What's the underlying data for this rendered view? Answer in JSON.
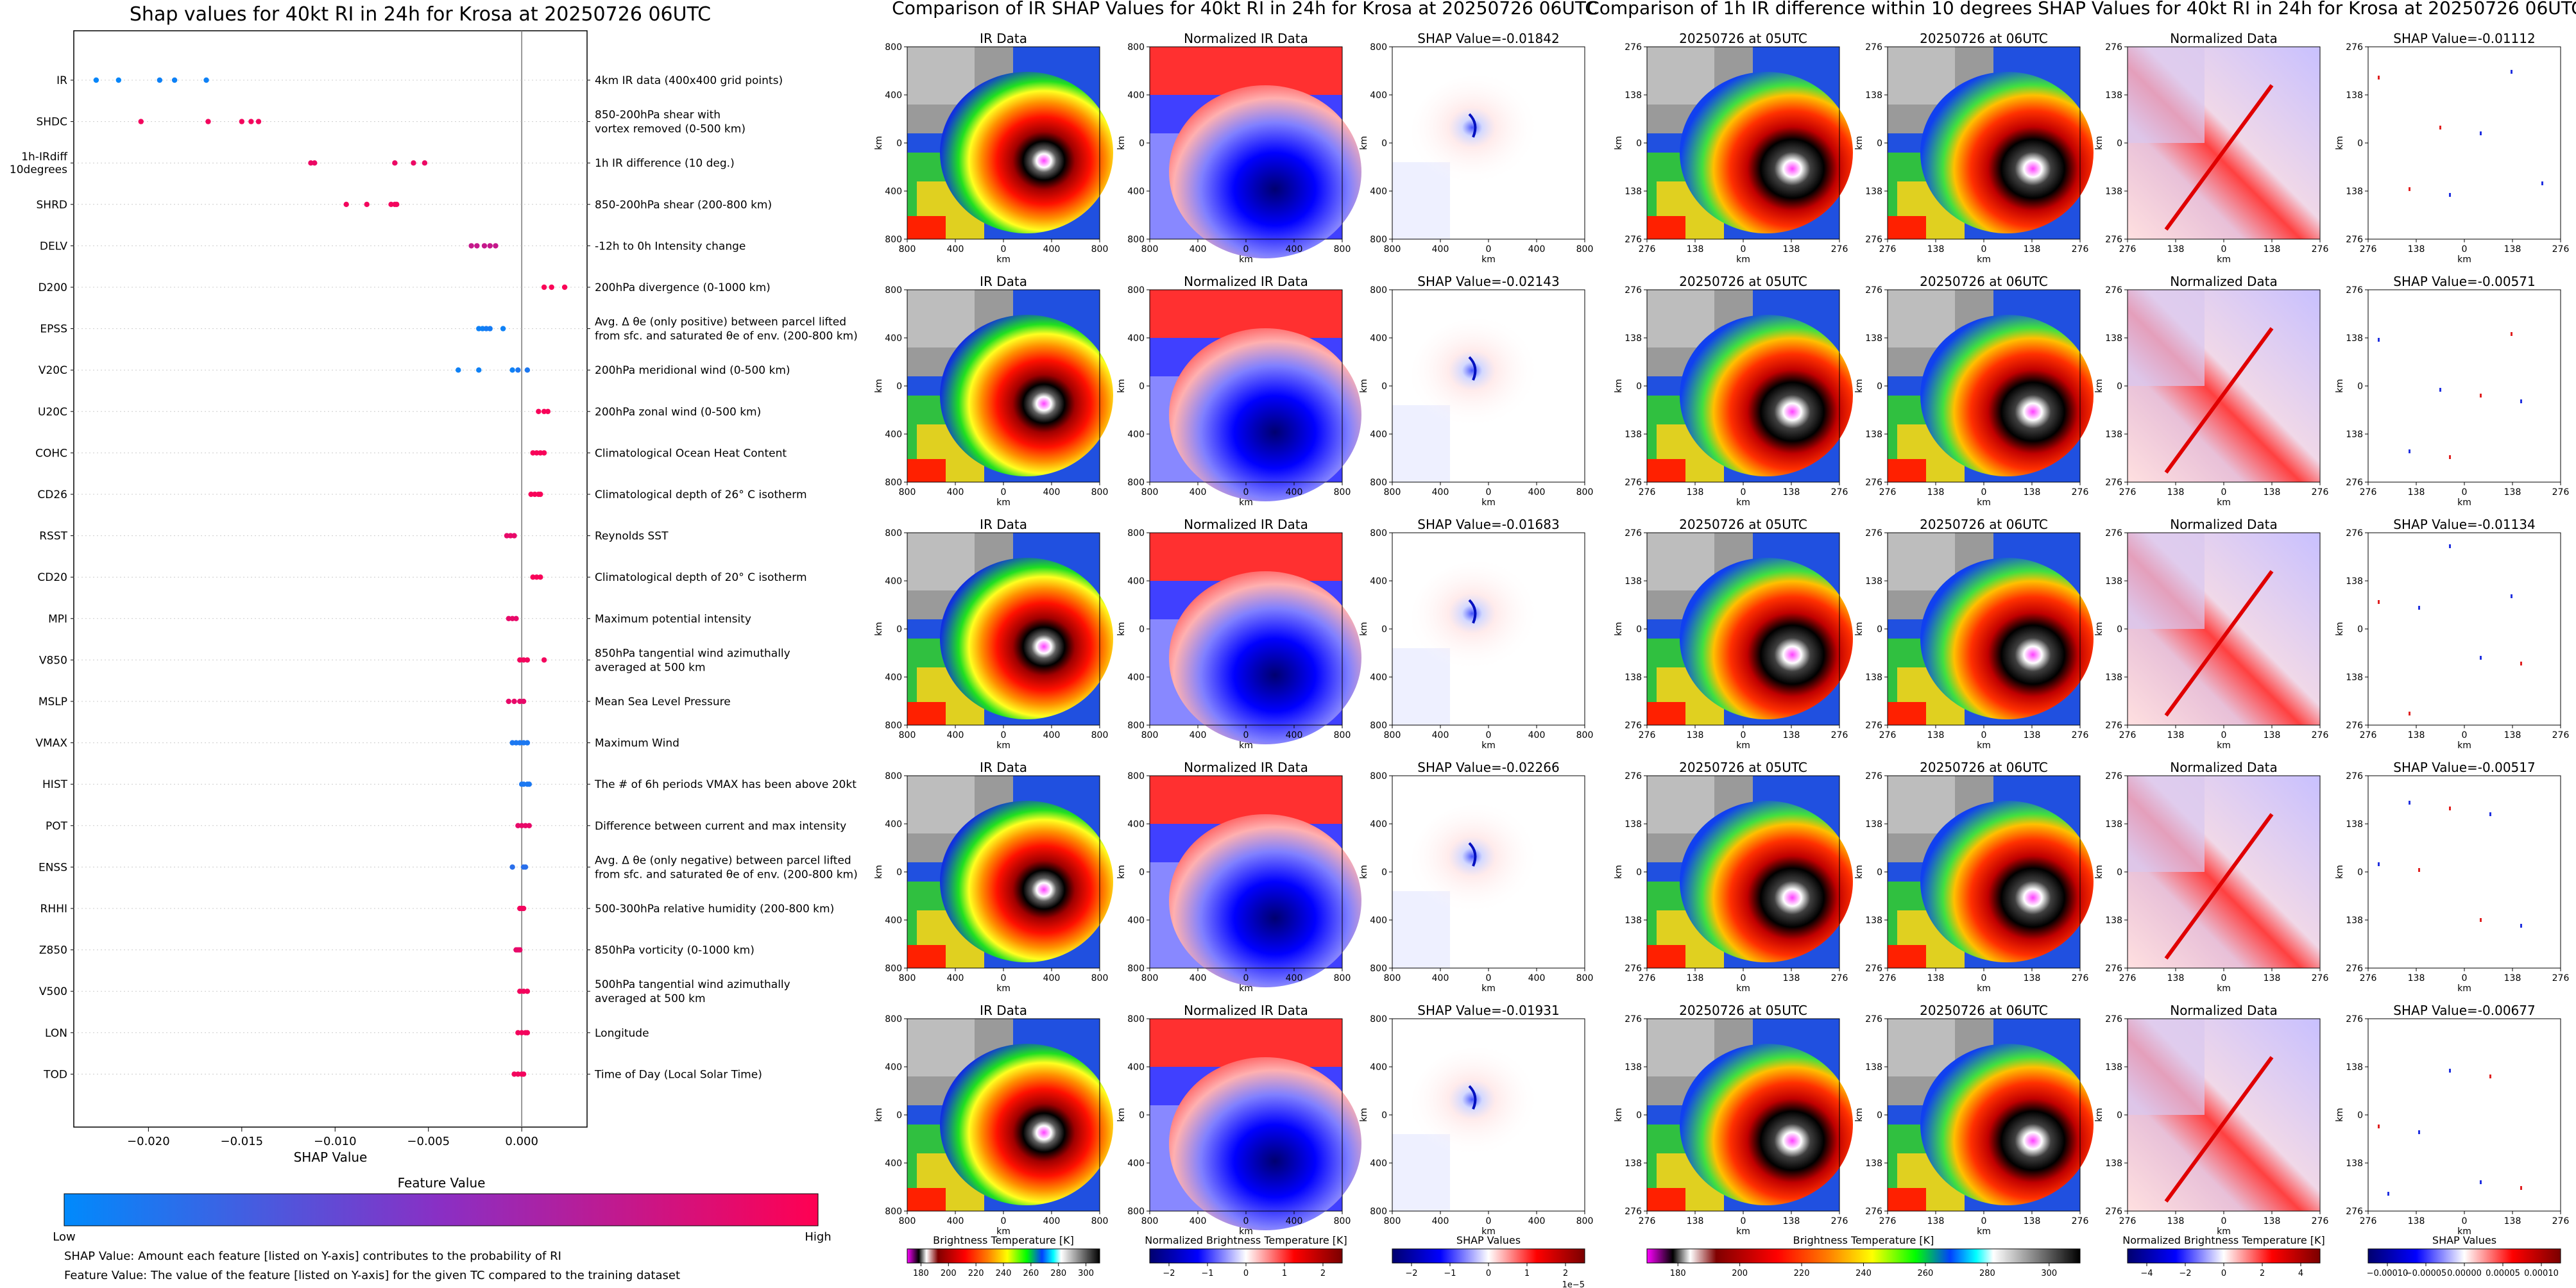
{
  "colors": {
    "feature_low": "#008afc",
    "feature_high": "#ff0052",
    "ir_palette": [
      "#ff00ff",
      "#000000",
      "#ffffff",
      "#c00000",
      "#ff0000",
      "#ff8000",
      "#ffff00",
      "#00ff00",
      "#0040ff",
      "#00ffff",
      "#ffffff",
      "#000000"
    ],
    "diverging": [
      "#00008b",
      "#0000ff",
      "#ffffff",
      "#ff0000",
      "#8b0000"
    ]
  },
  "left_panel": {
    "title": "Shap values for 40kt RI in 24h for Krosa at 20250726 06UTC",
    "xlabel": "SHAP Value",
    "colorbar_title": "Feature Value",
    "colorbar_low": "Low",
    "colorbar_high": "High",
    "footnote_1": "SHAP Value: Amount each feature [listed on Y-axis] contributes to the probability of RI",
    "footnote_2": "Feature Value: The value of the feature [listed on Y-axis] for the given TC compared to the training dataset"
  },
  "middle_panel": {
    "title": "Comparison of IR SHAP Values for 40kt RI in 24h for Krosa at 20250726 06UTC",
    "col_titles": [
      "IR Data",
      "Normalized IR Data"
    ],
    "shap_titles": [
      "SHAP Value=-0.01842",
      "SHAP Value=-0.02143",
      "SHAP Value=-0.01683",
      "SHAP Value=-0.02266",
      "SHAP Value=-0.01931"
    ],
    "ticks": [
      "800",
      "400",
      "0",
      "400",
      "800"
    ],
    "axis_unit": "km",
    "colorbars": [
      {
        "label": "Brightness Temperature [K]",
        "ticks": [
          "180",
          "200",
          "220",
          "240",
          "260",
          "280",
          "300"
        ]
      },
      {
        "label": "Normalized Brightness Temperature [K]",
        "ticks": [
          "−2",
          "−1",
          "0",
          "1",
          "2"
        ]
      },
      {
        "label": "SHAP Values",
        "ticks": [
          "−2",
          "−1",
          "0",
          "1",
          "2"
        ],
        "offset": "1e−5"
      }
    ]
  },
  "right_panel": {
    "title": "Comparison of 1h IR difference within 10 degrees SHAP Values for 40kt RI in 24h for Krosa at 20250726 06UTC",
    "col_titles": [
      "20250726 at 05UTC",
      "20250726 at 06UTC",
      "Normalized Data"
    ],
    "shap_titles": [
      "SHAP Value=-0.01112",
      "SHAP Value=-0.00571",
      "SHAP Value=-0.01134",
      "SHAP Value=-0.00517",
      "SHAP Value=-0.00677"
    ],
    "ticks": [
      "276",
      "138",
      "0",
      "138",
      "276"
    ],
    "axis_unit": "km",
    "colorbars": [
      {
        "label": "Brightness Temperature [K]",
        "ticks": [
          "180",
          "200",
          "220",
          "240",
          "260",
          "280",
          "300"
        ]
      },
      {
        "label": "Normalized Brightness Temperature [K]",
        "ticks": [
          "−4",
          "−2",
          "0",
          "2",
          "4"
        ]
      },
      {
        "label": "SHAP Values",
        "ticks": [
          "−0.00010",
          "−0.00005",
          "0.00000",
          "0.00005",
          "0.00010"
        ]
      }
    ]
  },
  "chart_data": [
    {
      "type": "scatter",
      "title": "Shap values for 40kt RI in 24h for Krosa at 20250726 06UTC",
      "xlabel": "SHAP Value",
      "xlim": [
        -0.024,
        0.0035
      ],
      "xticks": [
        "−0.020",
        "−0.015",
        "−0.010",
        "−0.005",
        "0.000"
      ],
      "xtick_values": [
        -0.02,
        -0.015,
        -0.01,
        -0.005,
        0.0
      ],
      "legend": "colorbar-bottom",
      "features": [
        {
          "name": "IR",
          "desc": "4km IR data (400x400 grid points)",
          "points": [
            [
              -0.0228,
              0.02
            ],
            [
              -0.0216,
              0.02
            ],
            [
              -0.0194,
              0.05
            ],
            [
              -0.0186,
              0.05
            ],
            [
              -0.0169,
              0.05
            ]
          ]
        },
        {
          "name": "SHDC",
          "desc": "850-200hPa shear with\nvortex removed (0-500 km)",
          "points": [
            [
              -0.0204,
              0.95
            ],
            [
              -0.0168,
              0.95
            ],
            [
              -0.015,
              0.95
            ],
            [
              -0.0145,
              0.95
            ],
            [
              -0.0141,
              0.95
            ]
          ]
        },
        {
          "name": "1h-IRdiff\n10degrees",
          "desc": "1h IR difference (10 deg.)",
          "points": [
            [
              -0.0113,
              0.92
            ],
            [
              -0.0111,
              0.92
            ],
            [
              -0.0068,
              0.92
            ],
            [
              -0.0058,
              0.92
            ],
            [
              -0.0052,
              0.92
            ]
          ]
        },
        {
          "name": "SHRD",
          "desc": "850-200hPa shear (200-800 km)",
          "points": [
            [
              -0.0094,
              0.95
            ],
            [
              -0.0083,
              0.95
            ],
            [
              -0.007,
              0.95
            ],
            [
              -0.0068,
              0.95
            ],
            [
              -0.0067,
              0.95
            ]
          ]
        },
        {
          "name": "DELV",
          "desc": "-12h to 0h Intensity change",
          "points": [
            [
              -0.0027,
              0.75
            ],
            [
              -0.0024,
              0.75
            ],
            [
              -0.002,
              0.75
            ],
            [
              -0.0017,
              0.75
            ],
            [
              -0.0014,
              0.75
            ]
          ]
        },
        {
          "name": "D200",
          "desc": "200hPa divergence (0-1000 km)",
          "points": [
            [
              0.0012,
              0.98
            ],
            [
              0.0016,
              0.98
            ],
            [
              0.0023,
              0.98
            ]
          ]
        },
        {
          "name": "EPSS",
          "desc": "Avg. Δ θe (only positive) between parcel lifted\nfrom sfc. and saturated θe of env. (200-800 km)",
          "points": [
            [
              -0.0023,
              0.05
            ],
            [
              -0.0021,
              0.05
            ],
            [
              -0.0019,
              0.08
            ],
            [
              -0.0017,
              0.08
            ],
            [
              -0.001,
              0.05
            ]
          ]
        },
        {
          "name": "V20C",
          "desc": "200hPa meridional wind (0-500 km)",
          "points": [
            [
              -0.0034,
              0.05
            ],
            [
              -0.0023,
              0.05
            ],
            [
              -0.0005,
              0.05
            ],
            [
              -0.0002,
              0.1
            ],
            [
              0.0003,
              0.1
            ]
          ]
        },
        {
          "name": "U20C",
          "desc": "200hPa zonal wind (0-500 km)",
          "points": [
            [
              0.0009,
              0.97
            ],
            [
              0.0012,
              0.97
            ],
            [
              0.0014,
              0.97
            ]
          ]
        },
        {
          "name": "COHC",
          "desc": "Climatological Ocean Heat Content",
          "points": [
            [
              0.0006,
              0.97
            ],
            [
              0.0008,
              0.97
            ],
            [
              0.001,
              0.97
            ],
            [
              0.0012,
              0.97
            ]
          ]
        },
        {
          "name": "CD26",
          "desc": "Climatological depth of 26° C isotherm",
          "points": [
            [
              0.0005,
              0.97
            ],
            [
              0.0007,
              0.97
            ],
            [
              0.0009,
              0.97
            ],
            [
              0.001,
              0.97
            ]
          ]
        },
        {
          "name": "RSST",
          "desc": "Reynolds SST",
          "points": [
            [
              -0.0008,
              0.9
            ],
            [
              -0.0006,
              0.9
            ],
            [
              -0.0004,
              0.9
            ]
          ]
        },
        {
          "name": "CD20",
          "desc": "Climatological depth of 20° C isotherm",
          "points": [
            [
              0.0006,
              0.97
            ],
            [
              0.0008,
              0.97
            ],
            [
              0.001,
              0.97
            ]
          ]
        },
        {
          "name": "MPI",
          "desc": "Maximum potential intensity",
          "points": [
            [
              -0.0007,
              0.9
            ],
            [
              -0.0005,
              0.9
            ],
            [
              -0.0003,
              0.9
            ]
          ]
        },
        {
          "name": "V850",
          "desc": "850hPa tangential wind azimuthally\naveraged at 500 km",
          "points": [
            [
              -0.0001,
              0.95
            ],
            [
              0.0001,
              0.95
            ],
            [
              0.0003,
              0.95
            ],
            [
              0.0012,
              0.95
            ]
          ]
        },
        {
          "name": "MSLP",
          "desc": "Mean Sea Level Pressure",
          "points": [
            [
              -0.0007,
              0.9
            ],
            [
              -0.0004,
              0.9
            ],
            [
              -0.0001,
              0.9
            ],
            [
              0.0001,
              0.9
            ]
          ]
        },
        {
          "name": "VMAX",
          "desc": "Maximum Wind",
          "points": [
            [
              -0.0005,
              0.1
            ],
            [
              -0.0003,
              0.1
            ],
            [
              -0.0001,
              0.1
            ],
            [
              0.0001,
              0.1
            ],
            [
              0.0003,
              0.1
            ]
          ]
        },
        {
          "name": "HIST",
          "desc": "The # of 6h periods VMAX has been above 20kt",
          "points": [
            [
              0.0,
              0.1
            ],
            [
              0.0001,
              0.1
            ],
            [
              0.0003,
              0.1
            ],
            [
              0.0004,
              0.1
            ]
          ]
        },
        {
          "name": "POT",
          "desc": "Difference between current and max intensity",
          "points": [
            [
              -0.0002,
              0.9
            ],
            [
              0.0,
              0.9
            ],
            [
              0.0002,
              0.9
            ],
            [
              0.0004,
              0.9
            ]
          ]
        },
        {
          "name": "ENSS",
          "desc": "Avg. Δ θe (only negative) between parcel lifted\nfrom sfc. and saturated θe of env. (200-800 km)",
          "points": [
            [
              -0.0005,
              0.15
            ],
            [
              0.0001,
              0.15
            ],
            [
              0.0002,
              0.15
            ]
          ]
        },
        {
          "name": "RHHI",
          "desc": "500-300hPa relative humidity (200-800 km)",
          "points": [
            [
              -0.0001,
              0.95
            ],
            [
              0.0,
              0.95
            ],
            [
              0.0001,
              0.95
            ]
          ]
        },
        {
          "name": "Z850",
          "desc": "850hPa vorticity (0-1000 km)",
          "points": [
            [
              -0.0003,
              0.9
            ],
            [
              -0.0002,
              0.9
            ],
            [
              -0.0001,
              0.9
            ]
          ]
        },
        {
          "name": "V500",
          "desc": "500hPa tangential wind azimuthally\naveraged at 500 km",
          "points": [
            [
              -0.0001,
              0.95
            ],
            [
              0.0001,
              0.95
            ],
            [
              0.0003,
              0.95
            ]
          ]
        },
        {
          "name": "LON",
          "desc": "Longitude",
          "points": [
            [
              -0.0002,
              0.95
            ],
            [
              0.0,
              0.95
            ],
            [
              0.0002,
              0.95
            ],
            [
              0.0003,
              0.95
            ]
          ]
        },
        {
          "name": "TOD",
          "desc": "Time of Day (Local Solar Time)",
          "points": [
            [
              -0.0004,
              0.95
            ],
            [
              -0.0002,
              0.95
            ],
            [
              0.0,
              0.95
            ],
            [
              0.0001,
              0.95
            ]
          ]
        }
      ]
    },
    {
      "type": "heatmap",
      "title": "Comparison of IR SHAP Values for 40kt RI in 24h for Krosa at 20250726 06UTC",
      "rows": 5,
      "columns": [
        "IR Data",
        "Normalized IR Data",
        "SHAP Value"
      ],
      "shap_values": [
        -0.01842,
        -0.02143,
        -0.01683,
        -0.02266,
        -0.01931
      ],
      "xlim": [
        -800,
        800
      ],
      "ylim": [
        -800,
        800
      ],
      "units": "km"
    },
    {
      "type": "heatmap",
      "title": "Comparison of 1h IR difference within 10 degrees SHAP Values for 40kt RI in 24h for Krosa at 20250726 06UTC",
      "rows": 5,
      "columns": [
        "20250726 at 05UTC",
        "20250726 at 06UTC",
        "Normalized Data",
        "SHAP Value"
      ],
      "shap_values": [
        -0.01112,
        -0.00571,
        -0.01134,
        -0.00517,
        -0.00677
      ],
      "xlim": [
        -276,
        276
      ],
      "ylim": [
        -276,
        276
      ],
      "units": "km"
    }
  ]
}
